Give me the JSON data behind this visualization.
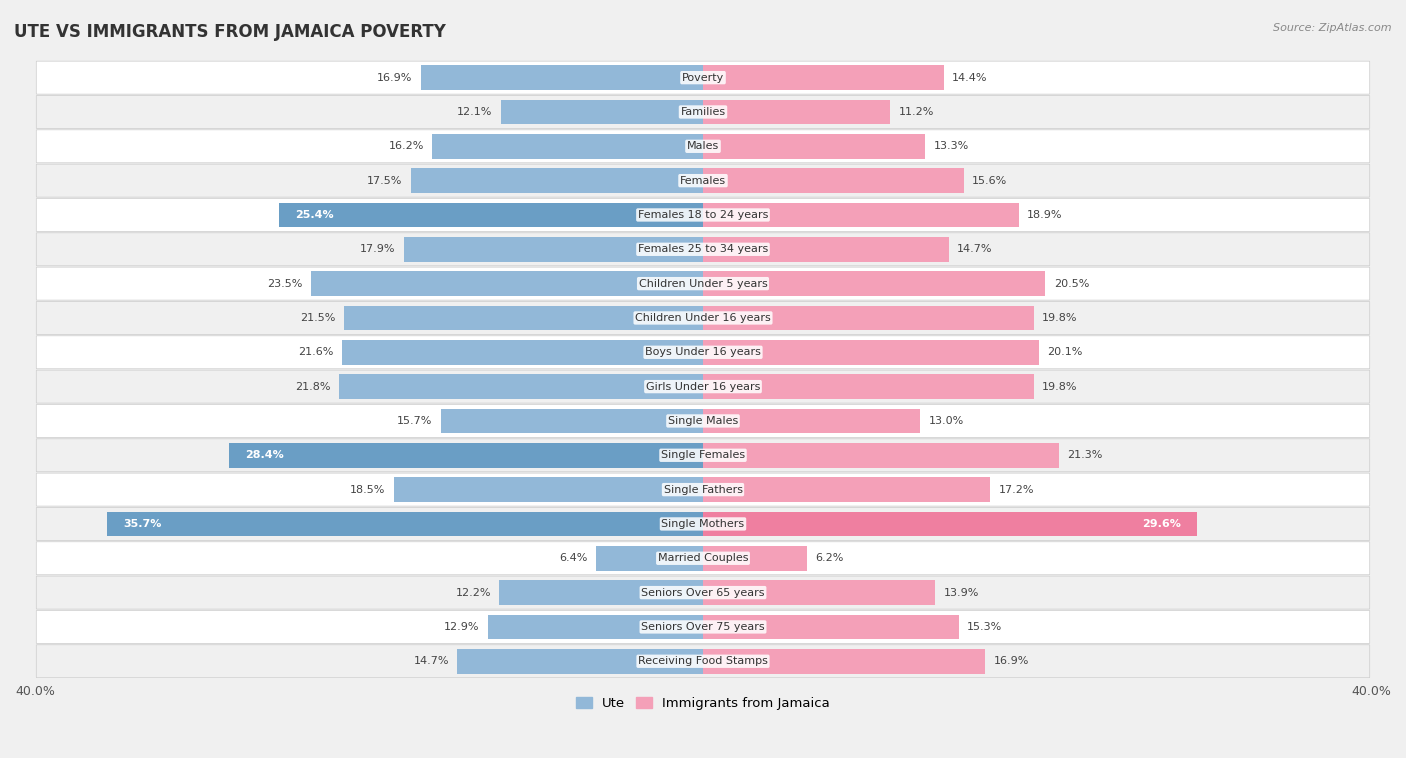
{
  "title": "Ute vs Immigrants from Jamaica Poverty",
  "source": "Source: ZipAtlas.com",
  "categories": [
    "Poverty",
    "Families",
    "Males",
    "Females",
    "Females 18 to 24 years",
    "Females 25 to 34 years",
    "Children Under 5 years",
    "Children Under 16 years",
    "Boys Under 16 years",
    "Girls Under 16 years",
    "Single Males",
    "Single Females",
    "Single Fathers",
    "Single Mothers",
    "Married Couples",
    "Seniors Over 65 years",
    "Seniors Over 75 years",
    "Receiving Food Stamps"
  ],
  "ute_values": [
    16.9,
    12.1,
    16.2,
    17.5,
    25.4,
    17.9,
    23.5,
    21.5,
    21.6,
    21.8,
    15.7,
    28.4,
    18.5,
    35.7,
    6.4,
    12.2,
    12.9,
    14.7
  ],
  "jamaica_values": [
    14.4,
    11.2,
    13.3,
    15.6,
    18.9,
    14.7,
    20.5,
    19.8,
    20.1,
    19.8,
    13.0,
    21.3,
    17.2,
    29.6,
    6.2,
    13.9,
    15.3,
    16.9
  ],
  "ute_normal_color": "#92b8d8",
  "ute_highlight_color": "#6a9ec5",
  "jamaica_normal_color": "#f4a0b8",
  "jamaica_highlight_color": "#ef7fa0",
  "axis_limit": 40.0,
  "background_color": "#f0f0f0",
  "row_color_odd": "#ffffff",
  "row_color_even": "#f0f0f0",
  "legend_ute": "Ute",
  "legend_jamaica": "Immigrants from Jamaica",
  "highlight_rows": [
    4,
    11,
    13
  ],
  "jamaica_highlight_rows": [
    13
  ]
}
